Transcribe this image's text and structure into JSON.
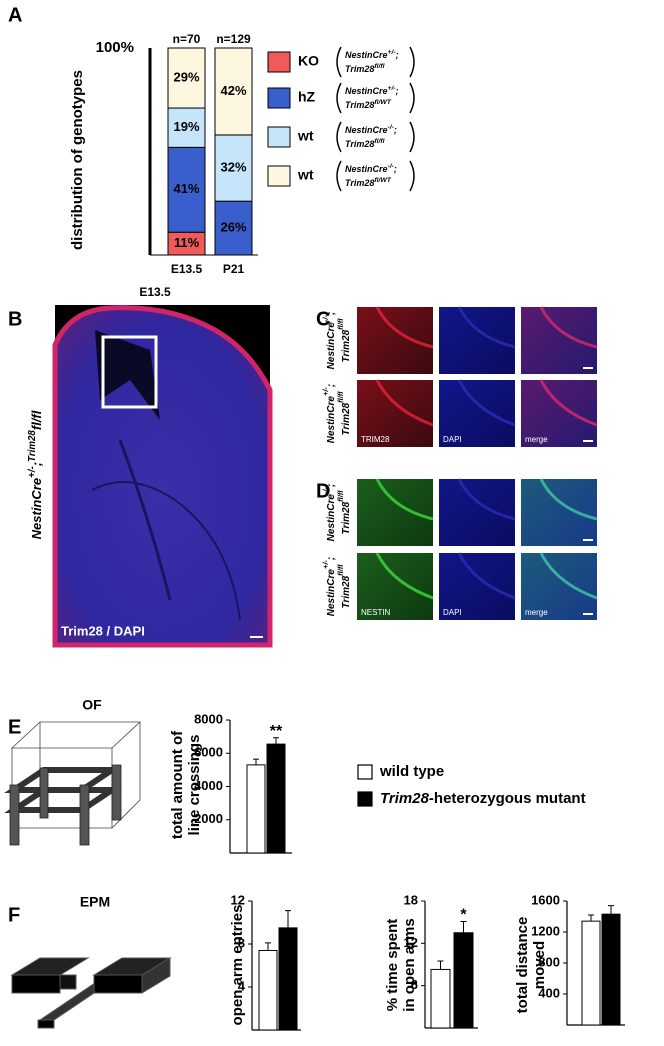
{
  "figure": {
    "panel_labels": [
      "A",
      "B",
      "C",
      "D",
      "E",
      "F"
    ],
    "B": {
      "title": "E13.5",
      "image_label": "Trim28 / DAPI",
      "genotype": [
        "NestinCre",
        "+/-",
        ";",
        "Trim28",
        "fl/fl"
      ]
    },
    "C": {
      "rows": [
        {
          "genotype": [
            [
              "NestinCre",
              "-/-",
              ";"
            ],
            [
              "Trim28",
              "fl/fl"
            ]
          ]
        },
        {
          "genotype": [
            [
              "NestinCre",
              "+/-",
              ";"
            ],
            [
              "Trim28",
              "fl/fl"
            ]
          ]
        }
      ],
      "channels": [
        "TRIM28",
        "DAPI",
        "merge"
      ]
    },
    "D": {
      "rows": [
        {
          "genotype": [
            [
              "NestinCre",
              "-/-",
              ";"
            ],
            [
              "Trim28",
              "fl/fl"
            ]
          ]
        },
        {
          "genotype": [
            [
              "NestinCre",
              "+/-",
              ";"
            ],
            [
              "Trim28",
              "fl/fl"
            ]
          ]
        }
      ],
      "channels": [
        "NESTIN",
        "DAPI",
        "merge"
      ]
    },
    "E": {
      "apparatus": "OF"
    },
    "F": {
      "apparatus": "EPM"
    },
    "legend": [
      {
        "name": [
          "wild type"
        ],
        "color": "#ffffff"
      },
      {
        "name": [
          "Trim28",
          "-heterozygous mutant"
        ],
        "color": "#000000"
      }
    ]
  },
  "chart_data": [
    {
      "type": "stacked-bar",
      "ylabel": "distribution of genotypes",
      "categories": [
        "E13.5",
        "P21"
      ],
      "n_labels": [
        "n=70",
        "n=129"
      ],
      "ylim": [
        0,
        100
      ],
      "yticks": [
        {
          "value": 100,
          "label": "100%"
        }
      ],
      "series": [
        {
          "name": "KO",
          "genotype": [
            [
              "NestinCre",
              "+/-",
              ";"
            ],
            [
              "Trim28",
              "fl/fl"
            ]
          ],
          "color": "#f05a5a",
          "values": [
            11,
            0
          ],
          "value_labels": [
            "11%",
            null
          ]
        },
        {
          "name": "hZ",
          "genotype": [
            [
              "NestinCre",
              "+/-",
              ";"
            ],
            [
              "Trim28",
              "fl/WT"
            ]
          ],
          "color": "#3a5fcd",
          "values": [
            41,
            26
          ],
          "value_labels": [
            "41%",
            "26%"
          ]
        },
        {
          "name": "wt",
          "genotype": [
            [
              "NestinCre",
              "-/-",
              ";"
            ],
            [
              "Trim28",
              "fl/fl"
            ]
          ],
          "color": "#c5e6fa",
          "values": [
            19,
            32
          ],
          "value_labels": [
            "19%",
            "32%"
          ]
        },
        {
          "name": "wt",
          "genotype": [
            [
              "NestinCre",
              "-/-",
              ";"
            ],
            [
              "Trim28",
              "fl/WT"
            ]
          ],
          "color": "#fdf7df",
          "values": [
            29,
            42
          ],
          "value_labels": [
            "29%",
            "42%"
          ]
        }
      ]
    },
    {
      "type": "bar",
      "ylabel": [
        "total amount of",
        "line crossings"
      ],
      "categories": [
        null,
        null
      ],
      "values": [
        5300,
        6550
      ],
      "errors": [
        350,
        380
      ],
      "colors": [
        "#ffffff",
        "#000000"
      ],
      "ylim": [
        0,
        8000
      ],
      "yticks": [
        2000,
        4000,
        6000,
        8000
      ],
      "significance": [
        null,
        "**"
      ]
    },
    {
      "type": "bar",
      "ylabel": [
        "open arm entries"
      ],
      "categories": [
        null,
        null
      ],
      "values": [
        7.4,
        9.5
      ],
      "errors": [
        0.7,
        1.6
      ],
      "colors": [
        "#ffffff",
        "#000000"
      ],
      "ylim": [
        0,
        12
      ],
      "yticks": [
        4,
        8,
        12
      ],
      "significance": [
        null,
        null
      ]
    },
    {
      "type": "bar",
      "ylabel": [
        "% time spent",
        "in open arms"
      ],
      "categories": [
        null,
        null
      ],
      "values": [
        8.3,
        13.5
      ],
      "errors": [
        1.2,
        1.6
      ],
      "colors": [
        "#ffffff",
        "#000000"
      ],
      "ylim": [
        0,
        18
      ],
      "yticks": [
        6,
        12,
        18
      ],
      "significance": [
        null,
        "*"
      ]
    },
    {
      "type": "bar",
      "ylabel": [
        "total distance",
        "moved"
      ],
      "categories": [
        null,
        null
      ],
      "values": [
        1340,
        1430
      ],
      "errors": [
        80,
        110
      ],
      "colors": [
        "#ffffff",
        "#000000"
      ],
      "ylim": [
        0,
        1600
      ],
      "yticks": [
        400,
        800,
        1200,
        1600
      ],
      "significance": [
        null,
        null
      ]
    }
  ]
}
